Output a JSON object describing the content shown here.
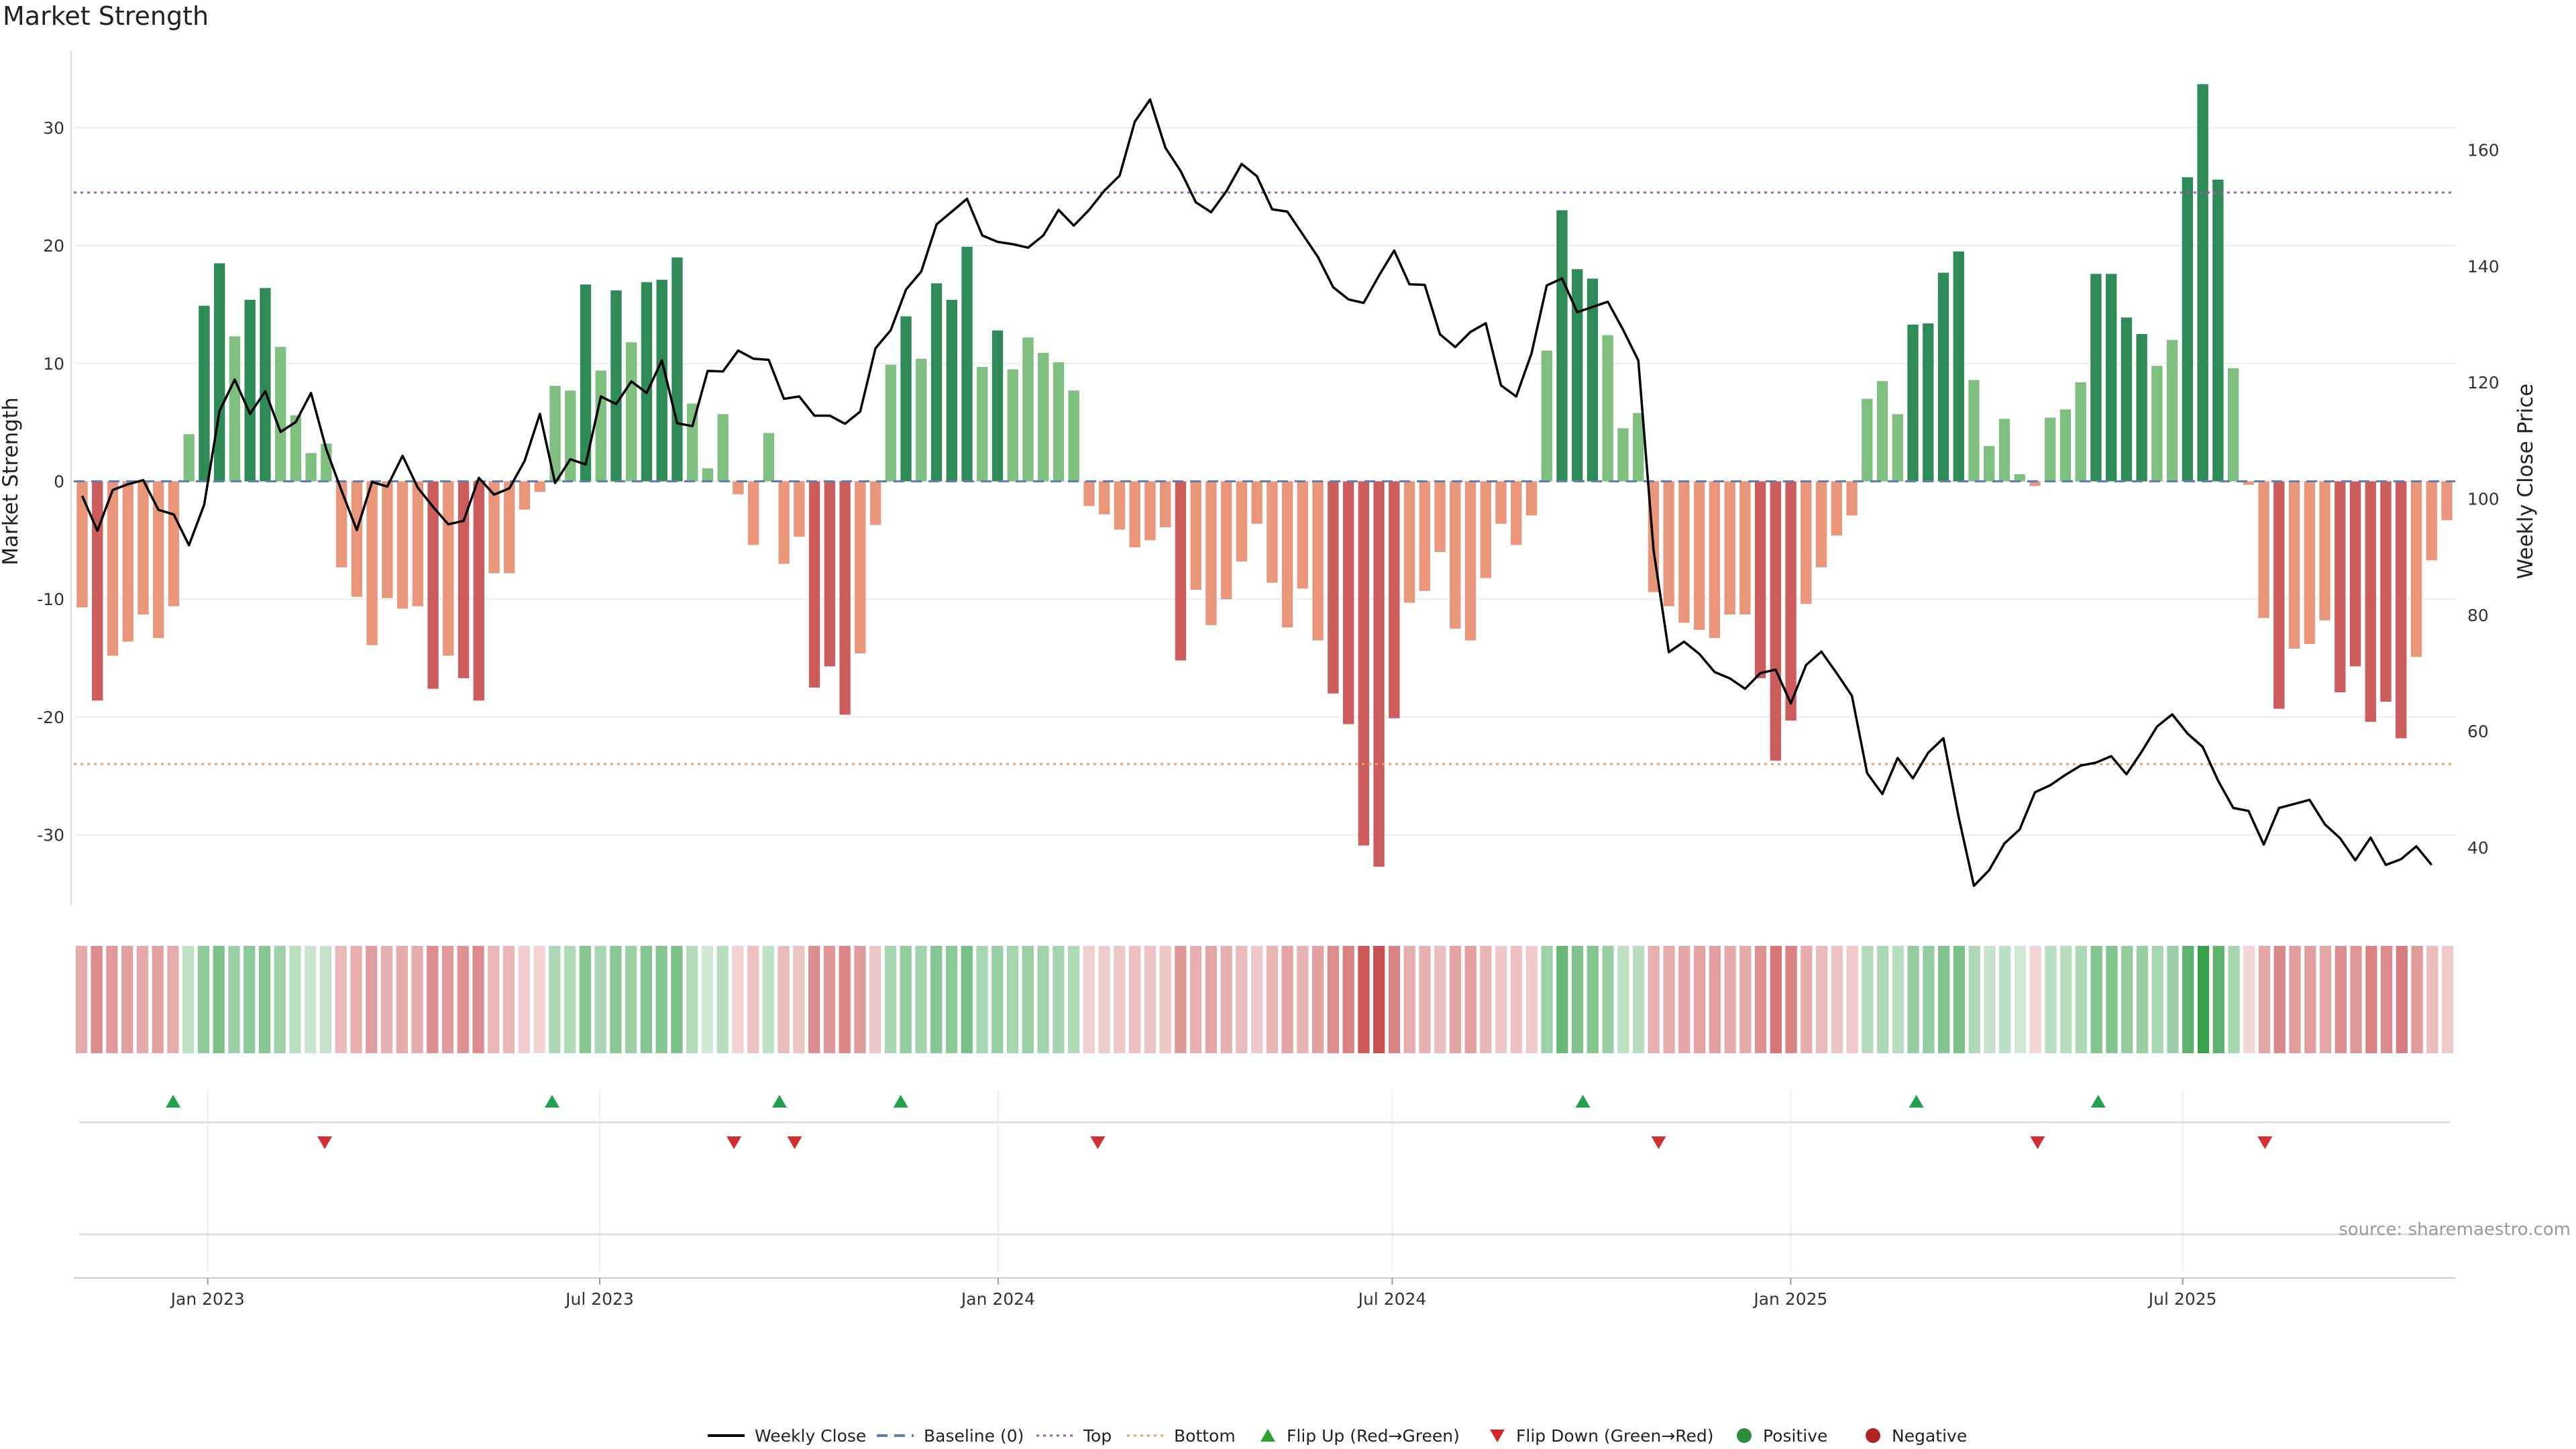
{
  "chart_data": {
    "type": "bar",
    "title": "Market Strength",
    "source": "source: sharemaestro.com",
    "ylabel_left": "Market Strength",
    "ylabel_right": "Weekly Close Price",
    "ylim_left": [
      -36,
      36
    ],
    "ylim_right": [
      30,
      176
    ],
    "yticks_left": [
      -30,
      -20,
      -10,
      0,
      10,
      20,
      30
    ],
    "yticks_right": [
      40,
      60,
      80,
      100,
      120,
      140,
      160
    ],
    "top_line": 24.5,
    "bottom_line": -24,
    "x_start": "2022-11-04",
    "x_end": "2025-10-31",
    "x_tick_dates": [
      "2023-01-01",
      "2023-07-01",
      "2024-01-01",
      "2024-07-01",
      "2025-01-01",
      "2025-07-01"
    ],
    "x_tick_labels": [
      "Jan 2023",
      "Jul 2023",
      "Jan 2024",
      "Jul 2024",
      "Jan 2025",
      "Jul 2025"
    ],
    "strength": [
      -10.7,
      -18.6,
      -14.8,
      -13.6,
      -11.3,
      -13.3,
      -10.6,
      4.0,
      14.9,
      18.5,
      12.3,
      15.4,
      16.4,
      11.4,
      5.6,
      2.4,
      3.2,
      -7.3,
      -9.8,
      -13.9,
      -9.9,
      -10.8,
      -10.6,
      -17.6,
      -14.8,
      -16.7,
      -18.6,
      -7.8,
      -7.8,
      -2.4,
      -0.9,
      8.1,
      7.7,
      16.7,
      9.4,
      16.2,
      11.8,
      16.9,
      17.1,
      19.0,
      6.6,
      1.1,
      5.7,
      -1.1,
      -5.4,
      4.1,
      -7.0,
      -4.7,
      -17.5,
      -15.7,
      -19.8,
      -14.6,
      -3.7,
      9.9,
      14.0,
      10.4,
      16.8,
      15.4,
      19.9,
      9.7,
      12.8,
      9.5,
      12.2,
      10.9,
      10.1,
      7.7,
      -2.1,
      -2.8,
      -4.1,
      -5.6,
      -5.0,
      -3.9,
      -15.2,
      -9.2,
      -12.2,
      -10.0,
      -6.8,
      -3.6,
      -8.6,
      -12.4,
      -9.1,
      -13.5,
      -18.0,
      -20.6,
      -30.9,
      -32.7,
      -20.1,
      -10.3,
      -9.3,
      -6.0,
      -12.5,
      -13.5,
      -8.2,
      -3.6,
      -5.4,
      -2.9,
      11.1,
      23.0,
      18.0,
      17.2,
      12.4,
      4.5,
      5.8,
      -9.4,
      -10.6,
      -12.0,
      -12.6,
      -13.3,
      -11.3,
      -11.3,
      -16.7,
      -23.7,
      -20.3,
      -10.4,
      -7.3,
      -4.6,
      -2.9,
      7.0,
      8.5,
      5.7,
      13.3,
      13.4,
      17.7,
      19.5,
      8.6,
      3.0,
      5.3,
      0.6,
      -0.4,
      5.4,
      6.1,
      8.4,
      17.6,
      17.6,
      13.9,
      12.5,
      9.8,
      12.0,
      25.8,
      33.7,
      25.6,
      9.6,
      -0.3,
      -11.6,
      -19.3,
      -14.2,
      -13.8,
      -11.8,
      -17.9,
      -15.7,
      -20.4,
      -18.7,
      -21.8,
      -14.9,
      -6.7,
      -3.3
    ],
    "close": [
      100.5,
      94.5,
      101.5,
      102.5,
      103.2,
      98.1,
      97.3,
      92.0,
      99.0,
      115.1,
      120.5,
      114.6,
      118.5,
      111.5,
      113.2,
      118.2,
      108.5,
      101.4,
      94.6,
      102.9,
      102.1,
      107.4,
      101.9,
      98.6,
      95.6,
      96.2,
      103.6,
      100.7,
      101.8,
      106.5,
      114.6,
      102.7,
      106.8,
      105.9,
      117.6,
      116.3,
      120.2,
      118.2,
      123.8,
      113.0,
      112.5,
      122.0,
      121.9,
      125.5,
      124.1,
      123.9,
      117.2,
      117.6,
      114.3,
      114.3,
      112.9,
      115.0,
      125.9,
      129.0,
      136.0,
      139.1,
      147.2,
      149.4,
      151.6,
      145.3,
      144.2,
      143.8,
      143.2,
      145.3,
      149.7,
      147.0,
      149.7,
      153.0,
      155.6,
      164.9,
      168.7,
      160.4,
      156.4,
      151.0,
      149.3,
      152.9,
      157.6,
      155.5,
      149.8,
      149.4,
      145.5,
      141.6,
      136.4,
      134.3,
      133.7,
      138.4,
      142.7,
      136.9,
      136.8,
      128.3,
      126.1,
      128.7,
      130.2,
      119.5,
      117.6,
      125.0,
      136.7,
      137.9,
      132.1,
      133.0,
      133.9,
      129.1,
      123.8,
      91.2,
      73.6,
      75.4,
      73.3,
      70.2,
      69.1,
      67.3,
      70.0,
      70.6,
      64.8,
      71.4,
      73.7,
      70.0,
      66.1,
      52.8,
      49.2,
      55.4,
      51.9,
      56.3,
      58.8,
      45.2,
      33.4,
      36.1,
      40.7,
      43.1,
      49.5,
      50.7,
      52.5,
      54.1,
      54.6,
      55.7,
      52.6,
      56.5,
      60.8,
      62.9,
      59.6,
      57.3,
      51.5,
      46.8,
      46.3,
      40.5,
      46.8,
      47.5,
      48.2,
      44.0,
      41.6,
      37.8,
      41.7,
      37.0,
      38.0,
      40.2,
      37.0
    ],
    "flip_up_dates": [
      "2022-12-16",
      "2023-06-09",
      "2023-09-22",
      "2023-11-17",
      "2024-09-27",
      "2025-02-28",
      "2025-05-23"
    ],
    "flip_down_dates": [
      "2023-02-24",
      "2023-09-01",
      "2023-09-29",
      "2024-02-16",
      "2024-11-01",
      "2025-04-25",
      "2025-08-08"
    ],
    "legend": [
      {
        "label": "Weekly Close",
        "kind": "line",
        "color": "#000000"
      },
      {
        "label": "Baseline (0)",
        "kind": "dash",
        "color": "#5a7fb5"
      },
      {
        "label": "Top",
        "kind": "dot",
        "color": "#9b59b6"
      },
      {
        "label": "Bottom",
        "kind": "dot",
        "color": "#f0a060"
      },
      {
        "label": "Flip Up (Red→Green)",
        "kind": "tri-up",
        "color": "#2ca02c"
      },
      {
        "label": "Flip Down (Green→Red)",
        "kind": "tri-down",
        "color": "#d62728"
      },
      {
        "label": "Positive",
        "kind": "circle",
        "color": "#2e8b3a"
      },
      {
        "label": "Negative",
        "kind": "circle",
        "color": "#b22222"
      }
    ]
  }
}
